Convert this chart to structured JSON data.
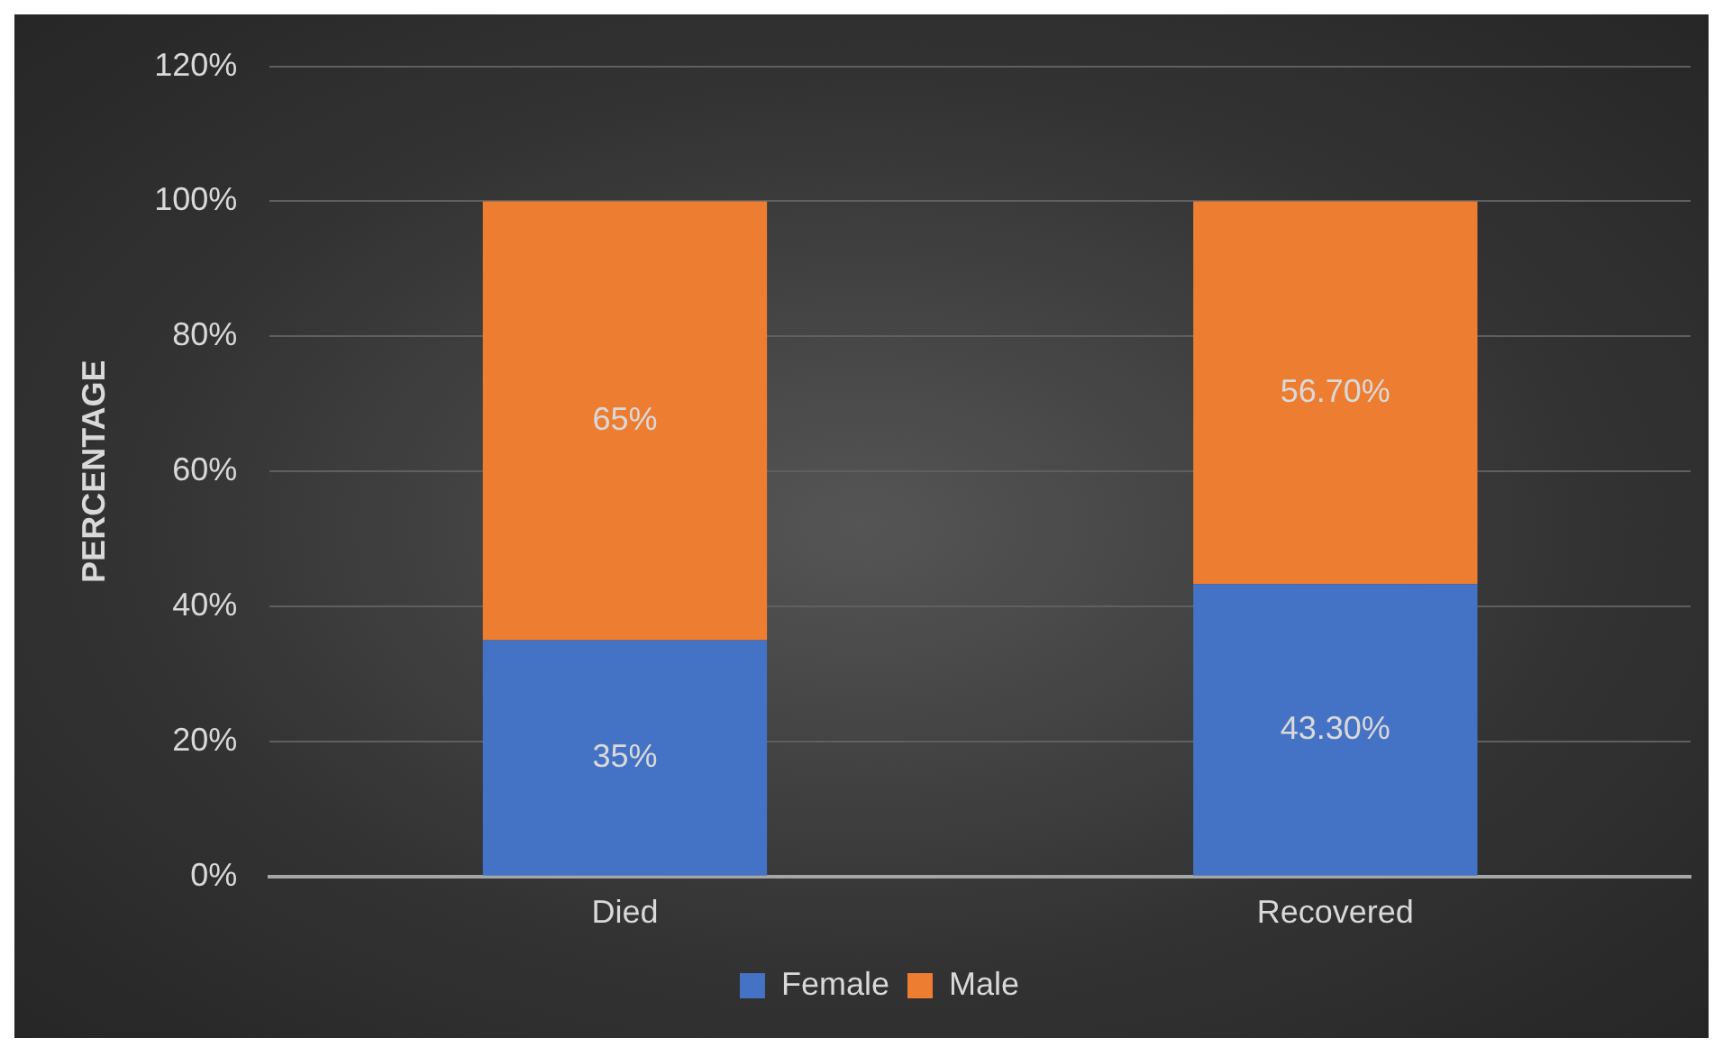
{
  "chart_data": {
    "type": "bar",
    "stacked": true,
    "ylabel": "PERCENTAGE",
    "categories": [
      "Died",
      "Recovered"
    ],
    "series": [
      {
        "name": "Female",
        "color": "#4472c4",
        "values": [
          35,
          43.3
        ],
        "value_labels": [
          "35%",
          "43.30%"
        ]
      },
      {
        "name": "Male",
        "color": "#ed7d31",
        "values": [
          65,
          56.7
        ],
        "value_labels": [
          "65%",
          "56.70%"
        ]
      }
    ],
    "ylim": [
      0,
      120
    ],
    "yticks": [
      {
        "value": 0,
        "label": "0%"
      },
      {
        "value": 20,
        "label": "20%"
      },
      {
        "value": 40,
        "label": "40%"
      },
      {
        "value": 60,
        "label": "60%"
      },
      {
        "value": 80,
        "label": "80%"
      },
      {
        "value": 100,
        "label": "100%"
      },
      {
        "value": 120,
        "label": "120%"
      }
    ],
    "grid": "y",
    "legend": "bottom"
  }
}
